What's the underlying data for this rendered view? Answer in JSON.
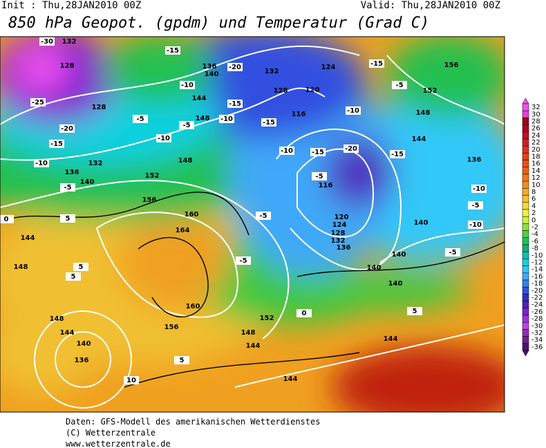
{
  "header": {
    "init": "Init : Thu,28JAN2010 00Z",
    "valid": "Valid: Thu,28JAN2010 00Z",
    "title": "850 hPa Geopot. (gpdm) und Temperatur (Grad C)"
  },
  "map": {
    "contour_labels": [
      "-30",
      "132",
      "128",
      "-25",
      "128",
      "-20",
      "-15",
      "-10",
      "132",
      "136",
      "-5",
      "140",
      "144",
      "148",
      "0",
      "5",
      "5",
      "5",
      "152",
      "156",
      "160",
      "164",
      "160",
      "156",
      "148",
      "144",
      "140",
      "136",
      "10",
      "5",
      "144",
      "148",
      "152",
      "0",
      "144",
      "144",
      "5",
      "140",
      "140",
      "140",
      "136",
      "132",
      "128",
      "124",
      "120",
      "116",
      "116",
      "120",
      "124",
      "132",
      "128",
      "136",
      "140",
      "144",
      "148",
      "148",
      "156",
      "152",
      "148",
      "144",
      "136",
      "140",
      "-5",
      "-15",
      "-20",
      "-10",
      "-15",
      "-5",
      "-10",
      "-5",
      "-10",
      "-15",
      "-10",
      "-5",
      "-10",
      "-5",
      "-20",
      "-15",
      "-10",
      "-15",
      "-10",
      "-15",
      "-5",
      "-5",
      "-5"
    ]
  },
  "colorbar": {
    "levels": [
      32,
      30,
      28,
      26,
      24,
      22,
      20,
      18,
      16,
      14,
      12,
      10,
      8,
      6,
      4,
      2,
      0,
      -2,
      -4,
      -6,
      -8,
      -10,
      -12,
      -14,
      -16,
      -18,
      -20,
      -22,
      -24,
      -26,
      -28,
      -30,
      -32,
      -34,
      -36
    ],
    "colors": [
      "#f050f0",
      "#e040d8",
      "#a00018",
      "#b00020",
      "#c01020",
      "#d02020",
      "#e03020",
      "#e84018",
      "#f05010",
      "#f06010",
      "#f07818",
      "#f09020",
      "#f8a828",
      "#f8c030",
      "#f8d838",
      "#f0f040",
      "#c8f040",
      "#90e040",
      "#50d040",
      "#20c050",
      "#10b070",
      "#10c0b0",
      "#10d0e0",
      "#30c8f8",
      "#40a8f8",
      "#3080f0",
      "#3050e0",
      "#3030c0",
      "#5020c0",
      "#8020d0",
      "#a030e0",
      "#c040e0",
      "#9030b0",
      "#702090",
      "#501070"
    ]
  },
  "footer": {
    "lines": [
      "Daten: GFS-Modell des amerikanischen Wetterdienstes",
      "(C) Wetterzentrale",
      "www.wetterzentrale.de"
    ]
  }
}
